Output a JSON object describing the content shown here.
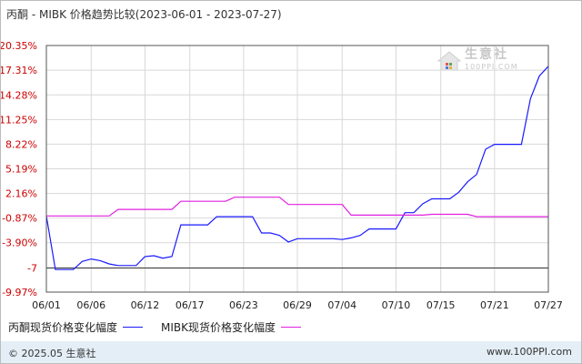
{
  "title": "丙酮 - MIBK 价格趋势比较(2023-06-01 - 2023-07-27)",
  "footer": {
    "copyright": "© 2025.05 生意社",
    "url": "www.100PPI.com"
  },
  "watermark": {
    "name": "生意社",
    "url": "100PPI.COM"
  },
  "colors": {
    "series1": "#1a1aff",
    "series2": "#e020e0",
    "ytick": "#cc0000",
    "grid": "#d8d8d8",
    "axis": "#555555"
  },
  "chart_data": {
    "type": "line",
    "title": "丙酮 - MIBK 价格趋势比较(2023-06-01 - 2023-07-27)",
    "xlabel": "",
    "ylabel": "",
    "ylim": [
      -9.97,
      20.35
    ],
    "yticks": [
      "20.35%",
      "17.31%",
      "14.28%",
      "11.25%",
      "8.22%",
      "5.19%",
      "2.16%",
      "-0.87%",
      "-3.90%",
      "-7",
      "-9.97%"
    ],
    "ytick_values": [
      20.35,
      17.31,
      14.28,
      11.25,
      8.22,
      5.19,
      2.16,
      -0.87,
      -3.9,
      -7,
      -9.97
    ],
    "xticks": [
      "06/01",
      "06/06",
      "06/12",
      "06/17",
      "06/23",
      "06/29",
      "07/04",
      "07/10",
      "07/15",
      "07/21",
      "07/27"
    ],
    "xticks_day_index": [
      0,
      5,
      11,
      16,
      22,
      28,
      33,
      39,
      44,
      50,
      56
    ],
    "grid": true,
    "legend_position": "bottom-left",
    "series": [
      {
        "name": "丙酮现货价格变化幅度",
        "color": "#1a1aff",
        "points": [
          [
            0,
            -0.6
          ],
          [
            1,
            -7.2
          ],
          [
            2,
            -7.2
          ],
          [
            3,
            -7.2
          ],
          [
            4,
            -6.2
          ],
          [
            5,
            -5.9
          ],
          [
            6,
            -6.1
          ],
          [
            7,
            -6.5
          ],
          [
            8,
            -6.7
          ],
          [
            9,
            -6.7
          ],
          [
            10,
            -6.7
          ],
          [
            11,
            -5.6
          ],
          [
            12,
            -5.5
          ],
          [
            13,
            -5.8
          ],
          [
            14,
            -5.6
          ],
          [
            15,
            -1.7
          ],
          [
            16,
            -1.7
          ],
          [
            17,
            -1.7
          ],
          [
            18,
            -1.7
          ],
          [
            19,
            -0.7
          ],
          [
            20,
            -0.7
          ],
          [
            21,
            -0.7
          ],
          [
            22,
            -0.7
          ],
          [
            23,
            -0.7
          ],
          [
            24,
            -2.7
          ],
          [
            25,
            -2.7
          ],
          [
            26,
            -3.0
          ],
          [
            27,
            -3.8
          ],
          [
            28,
            -3.4
          ],
          [
            29,
            -3.4
          ],
          [
            30,
            -3.4
          ],
          [
            31,
            -3.4
          ],
          [
            32,
            -3.4
          ],
          [
            33,
            -3.5
          ],
          [
            34,
            -3.3
          ],
          [
            35,
            -3.0
          ],
          [
            36,
            -2.2
          ],
          [
            37,
            -2.2
          ],
          [
            38,
            -2.2
          ],
          [
            39,
            -2.2
          ],
          [
            40,
            -0.2
          ],
          [
            41,
            -0.2
          ],
          [
            42,
            0.9
          ],
          [
            43,
            1.5
          ],
          [
            44,
            1.5
          ],
          [
            45,
            1.5
          ],
          [
            46,
            2.3
          ],
          [
            47,
            3.6
          ],
          [
            48,
            4.5
          ],
          [
            49,
            7.6
          ],
          [
            50,
            8.2
          ],
          [
            51,
            8.2
          ],
          [
            52,
            8.2
          ],
          [
            53,
            8.2
          ],
          [
            54,
            13.8
          ],
          [
            55,
            16.6
          ],
          [
            56,
            17.8
          ]
        ]
      },
      {
        "name": "MIBK现货价格变化幅度",
        "color": "#e020e0",
        "points": [
          [
            0,
            -0.6
          ],
          [
            7,
            -0.6
          ],
          [
            8,
            0.2
          ],
          [
            9,
            0.2
          ],
          [
            14,
            0.2
          ],
          [
            15,
            1.2
          ],
          [
            20,
            1.2
          ],
          [
            21,
            1.7
          ],
          [
            26,
            1.7
          ],
          [
            27,
            0.8
          ],
          [
            33,
            0.8
          ],
          [
            34,
            -0.5
          ],
          [
            42,
            -0.5
          ],
          [
            43,
            -0.4
          ],
          [
            47,
            -0.4
          ],
          [
            48,
            -0.7
          ],
          [
            56,
            -0.7
          ]
        ]
      }
    ]
  }
}
